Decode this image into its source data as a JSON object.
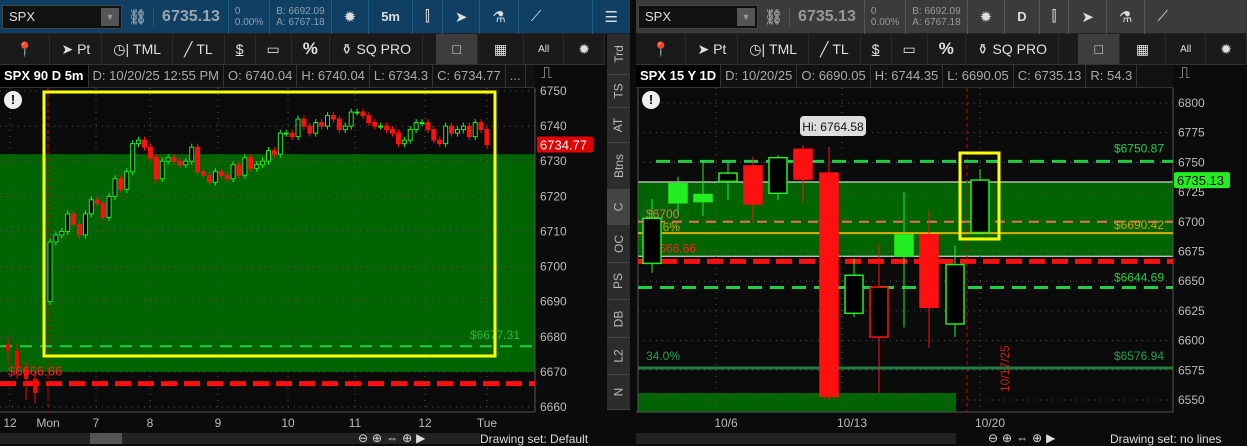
{
  "colors": {
    "accent_blue": "#0f3f62",
    "up": "#22e622",
    "down": "#ff0a0a",
    "zone": "#006400",
    "highlight": "#ffff00"
  },
  "left": {
    "symbol": "SPX",
    "last": "6735.13",
    "change": "0",
    "change_pct": "0.00%",
    "bid": "B: 6692.09",
    "ask": "A: 6767.18",
    "interval": "5m",
    "toolbar": [
      "Pt",
      "TML",
      "TL",
      "$",
      "",
      "%",
      "SQ PRO"
    ],
    "view_buttons": {
      "all": "All"
    },
    "header": {
      "title": "SPX 90 D 5m",
      "date": "D: 10/20/25 12:55 PM",
      "open": "O: 6740.04",
      "high": "H: 6740.04",
      "low": "L: 6734.3",
      "close": "C: 6734.77",
      "more": "..."
    },
    "side_tabs": [
      "Trd",
      "TS",
      "AT",
      "Btns",
      "C",
      "OC",
      "PS",
      "DB",
      "L2",
      "N"
    ],
    "price_tag": "6734.77",
    "labels": {
      "green_line": "$6677.31",
      "red_line": "$6666.66"
    },
    "drawing_set": "Drawing set: Default"
  },
  "right": {
    "symbol": "SPX",
    "last": "6735.13",
    "change": "0",
    "change_pct": "0.00%",
    "bid": "B: 6692.09",
    "ask": "A: 6767.18",
    "interval": "D",
    "toolbar": [
      "Pt",
      "TML",
      "TL",
      "$",
      "",
      "%",
      "SQ PRO"
    ],
    "view_buttons": {
      "all": "All"
    },
    "header": {
      "title": "SPX 15 Y 1D",
      "date": "D: 10/20/25",
      "open": "O: 6690.05",
      "high": "H: 6744.35",
      "low": "L: 6690.05",
      "close": "C: 6735.13",
      "range": "R: 54.3"
    },
    "price_tag": "6735.13",
    "tooltip": "Hi: 6764.58",
    "labels": {
      "l6750": "$6750.87",
      "l6700": "$6700",
      "pct13": "13.6%",
      "l6690": "$6690.42",
      "l6666": "$6666.66",
      "l6644": "$6644.69",
      "pct34": "34.0%",
      "l6576": "$6576.94",
      "vdate": "10/17/25"
    },
    "drawing_set": "Drawing set: no lines"
  },
  "chart_data": [
    {
      "type": "candlestick",
      "title": "SPX 90 D 5m",
      "ylim": [
        6660,
        6750
      ],
      "yticks": [
        6660,
        6670,
        6680,
        6690,
        6700,
        6710,
        6720,
        6730,
        6740,
        6750
      ],
      "xticks": [
        "12",
        "Mon",
        "7",
        "8",
        "9",
        "10",
        "11",
        "12",
        "Tue"
      ],
      "open_first": 6690,
      "close": [
        6707,
        6709,
        6710,
        6715,
        6712,
        6709,
        6715,
        6719,
        6718,
        6714,
        6720,
        6725,
        6722,
        6727,
        6735,
        6736,
        6734,
        6731,
        6725,
        6730,
        6731,
        6730,
        6729,
        6730,
        6734,
        6727,
        6726,
        6724,
        6727,
        6726,
        6725,
        6729,
        6726,
        6731,
        6728,
        6729,
        6730,
        6733,
        6732,
        6738,
        6738,
        6737,
        6742,
        6740,
        6738,
        6741,
        6740,
        6743,
        6742,
        6739,
        6740,
        6744,
        6744,
        6743,
        6741,
        6740,
        6740,
        6739,
        6738,
        6735,
        6736,
        6739,
        6741,
        6741,
        6739,
        6736,
        6735,
        6740,
        6738,
        6739,
        6740,
        6737,
        6741,
        6739,
        6734.77
      ],
      "levels": {
        "zone": [
          6670,
          6732
        ],
        "green_dashed": 6677.31,
        "red_dashed": 6666.66
      }
    },
    {
      "type": "candlestick",
      "title": "SPX 15 Y 1D",
      "ylim": [
        6550,
        6800
      ],
      "yticks": [
        6550,
        6575,
        6600,
        6625,
        6650,
        6675,
        6700,
        6725,
        6750,
        6775,
        6800
      ],
      "xticks": [
        "10/6",
        "10/13",
        "10/20"
      ],
      "candles": [
        {
          "o": 6665,
          "h": 6719,
          "l": 6657,
          "c": 6703,
          "fill": false,
          "color": "up"
        },
        {
          "o": 6716,
          "h": 6738,
          "l": 6706,
          "c": 6732,
          "fill": true,
          "color": "up"
        },
        {
          "o": 6717,
          "h": 6752,
          "l": 6705,
          "c": 6723,
          "fill": true,
          "color": "up"
        },
        {
          "o": 6734,
          "h": 6750,
          "l": 6718,
          "c": 6741,
          "fill": false,
          "color": "up"
        },
        {
          "o": 6747,
          "h": 6755,
          "l": 6700,
          "c": 6715,
          "fill": true,
          "color": "down"
        },
        {
          "o": 6724,
          "h": 6756,
          "l": 6718,
          "c": 6754,
          "fill": false,
          "color": "up"
        },
        {
          "o": 6761,
          "h": 6764.58,
          "l": 6716,
          "c": 6736,
          "fill": true,
          "color": "down"
        },
        {
          "o": 6741,
          "h": 6763,
          "l": 6550,
          "c": 6553,
          "fill": true,
          "color": "down"
        },
        {
          "o": 6623,
          "h": 6669,
          "l": 6620,
          "c": 6655,
          "fill": false,
          "color": "up"
        },
        {
          "o": 6603,
          "h": 6682,
          "l": 6556,
          "c": 6645,
          "fill": false,
          "color": "down"
        },
        {
          "o": 6671,
          "h": 6725,
          "l": 6611,
          "c": 6689,
          "fill": true,
          "color": "up"
        },
        {
          "o": 6689,
          "h": 6710,
          "l": 6594,
          "c": 6628,
          "fill": true,
          "color": "down"
        },
        {
          "o": 6614,
          "h": 6680,
          "l": 6603,
          "c": 6664,
          "fill": false,
          "color": "up"
        },
        {
          "o": 6691,
          "h": 6744.35,
          "l": 6690,
          "c": 6735.13,
          "fill": false,
          "color": "up"
        }
      ],
      "levels": {
        "zone": [
          6671,
          6733.5
        ],
        "green_dashed": [
          6750.87,
          6644.69
        ],
        "salmon_dashed": 6700,
        "yellow": 6690.42,
        "red_dashed": 6666.66,
        "dark_green": 6576.94
      }
    }
  ]
}
